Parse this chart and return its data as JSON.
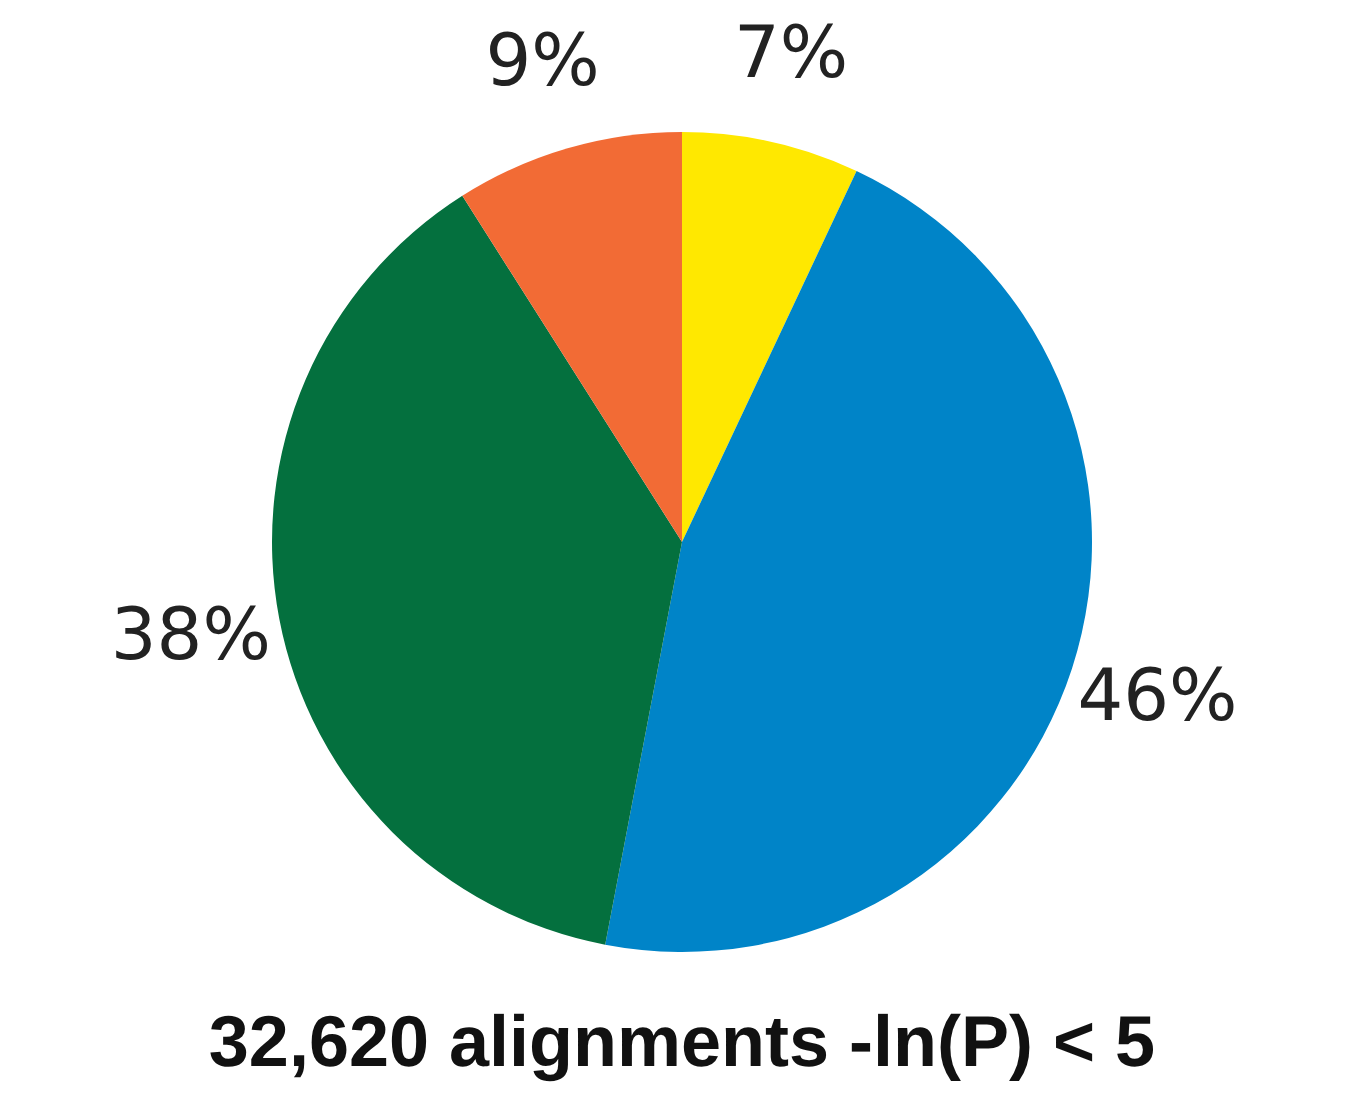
{
  "chart_data": {
    "type": "pie",
    "title": "32,620 alignments -ln(P) < 5",
    "categories": [
      null,
      null,
      null,
      null
    ],
    "values": [
      7,
      46,
      38,
      9
    ],
    "colors": [
      "#ffe800",
      "#0084c8",
      "#04703e",
      "#f26b35"
    ],
    "value_labels": [
      "7%",
      "46%",
      "38%",
      "9%"
    ]
  }
}
